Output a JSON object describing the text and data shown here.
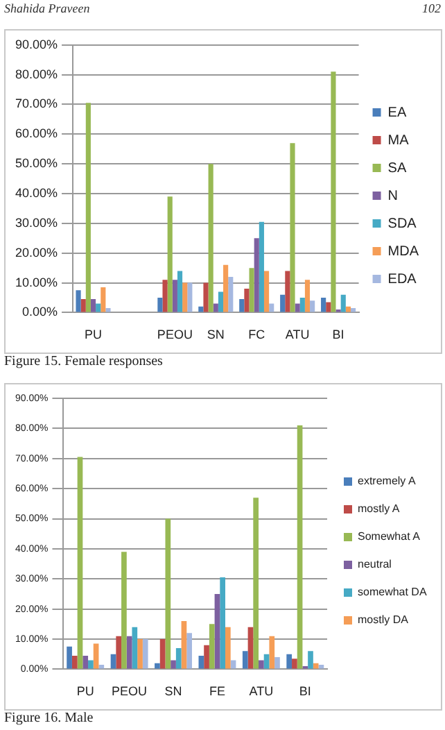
{
  "chart_data": [
    {
      "type": "bar",
      "title": "Figure 15. Female responses",
      "annotations": [
        "Shahida Praveen",
        "102"
      ],
      "categories": [
        "PU",
        null,
        "PEOU",
        "SN",
        "FC",
        "ATU",
        "BI"
      ],
      "series": [
        {
          "name": "EA",
          "color": "#4a7ebb",
          "values": [
            7.5,
            null,
            5,
            2,
            4.5,
            6,
            5
          ]
        },
        {
          "name": "MA",
          "color": "#be4b48",
          "values": [
            4.5,
            null,
            11,
            10,
            8,
            14,
            3.5
          ]
        },
        {
          "name": "SA",
          "color": "#98b954",
          "values": [
            70.5,
            null,
            39,
            50,
            15,
            57,
            81
          ]
        },
        {
          "name": "N",
          "color": "#7d60a0",
          "values": [
            4.5,
            null,
            11,
            3,
            25,
            3,
            1
          ]
        },
        {
          "name": "SDA",
          "color": "#46aac5",
          "values": [
            3,
            null,
            14,
            7,
            30.5,
            5,
            6
          ]
        },
        {
          "name": "MDA",
          "color": "#f59d56",
          "values": [
            8.5,
            null,
            10,
            16,
            14,
            11,
            2
          ]
        },
        {
          "name": "EDA",
          "color": "#a5b8e0",
          "values": [
            1.5,
            null,
            10,
            12,
            3,
            4,
            1.5
          ]
        }
      ],
      "ylim": [
        0,
        90
      ],
      "yticks": [
        {
          "value": 0,
          "label": "0.00%"
        },
        {
          "value": 10,
          "label": "10.00%"
        },
        {
          "value": 20,
          "label": "20.00%"
        },
        {
          "value": 30,
          "label": "30.00%"
        },
        {
          "value": 40,
          "label": "40.00%"
        },
        {
          "value": 50,
          "label": "50.00%"
        },
        {
          "value": 60,
          "label": "60.00%"
        },
        {
          "value": 70,
          "label": "70.00%"
        },
        {
          "value": 80,
          "label": "80.00%"
        },
        {
          "value": 90,
          "label": "90.00%"
        }
      ],
      "grid": "y",
      "legend": "right"
    },
    {
      "type": "bar",
      "title": "Figure 16. Male",
      "categories": [
        "PU",
        "PEOU",
        "SN",
        "FE",
        "ATU",
        "BI"
      ],
      "series": [
        {
          "name": "extremely A",
          "color": "#4a7ebb",
          "values": [
            7.5,
            5,
            2,
            4.5,
            6,
            5
          ]
        },
        {
          "name": "mostly A",
          "color": "#be4b48",
          "values": [
            4.5,
            11,
            10,
            8,
            14,
            3.5
          ]
        },
        {
          "name": "Somewhat A",
          "color": "#98b954",
          "values": [
            70.5,
            39,
            50,
            15,
            57,
            81
          ]
        },
        {
          "name": "neutral",
          "color": "#7d60a0",
          "values": [
            4.5,
            11,
            3,
            25,
            3,
            1
          ]
        },
        {
          "name": "somewhat DA",
          "color": "#46aac5",
          "values": [
            3,
            14,
            7,
            30.5,
            5,
            6
          ]
        },
        {
          "name": "mostly DA",
          "color": "#f59d56",
          "values": [
            8.5,
            10,
            16,
            14,
            11,
            2
          ]
        },
        {
          "color": "#a5b8e0",
          "values": [
            1.5,
            10,
            12,
            3,
            4,
            1.5
          ]
        }
      ],
      "ylim": [
        0,
        90
      ],
      "yticks": [
        {
          "value": 0,
          "label": "0.00%"
        },
        {
          "value": 10,
          "label": "10.00%"
        },
        {
          "value": 20,
          "label": "20.00%"
        },
        {
          "value": 30,
          "label": "30.00%"
        },
        {
          "value": 40,
          "label": "40.00%"
        },
        {
          "value": 50,
          "label": "50.00%"
        },
        {
          "value": 60,
          "label": "60.00%"
        },
        {
          "value": 70,
          "label": "70.00%"
        },
        {
          "value": 80,
          "label": "80.00%"
        },
        {
          "value": 90,
          "label": "90.00%"
        }
      ],
      "grid": "y",
      "legend": "right"
    }
  ]
}
